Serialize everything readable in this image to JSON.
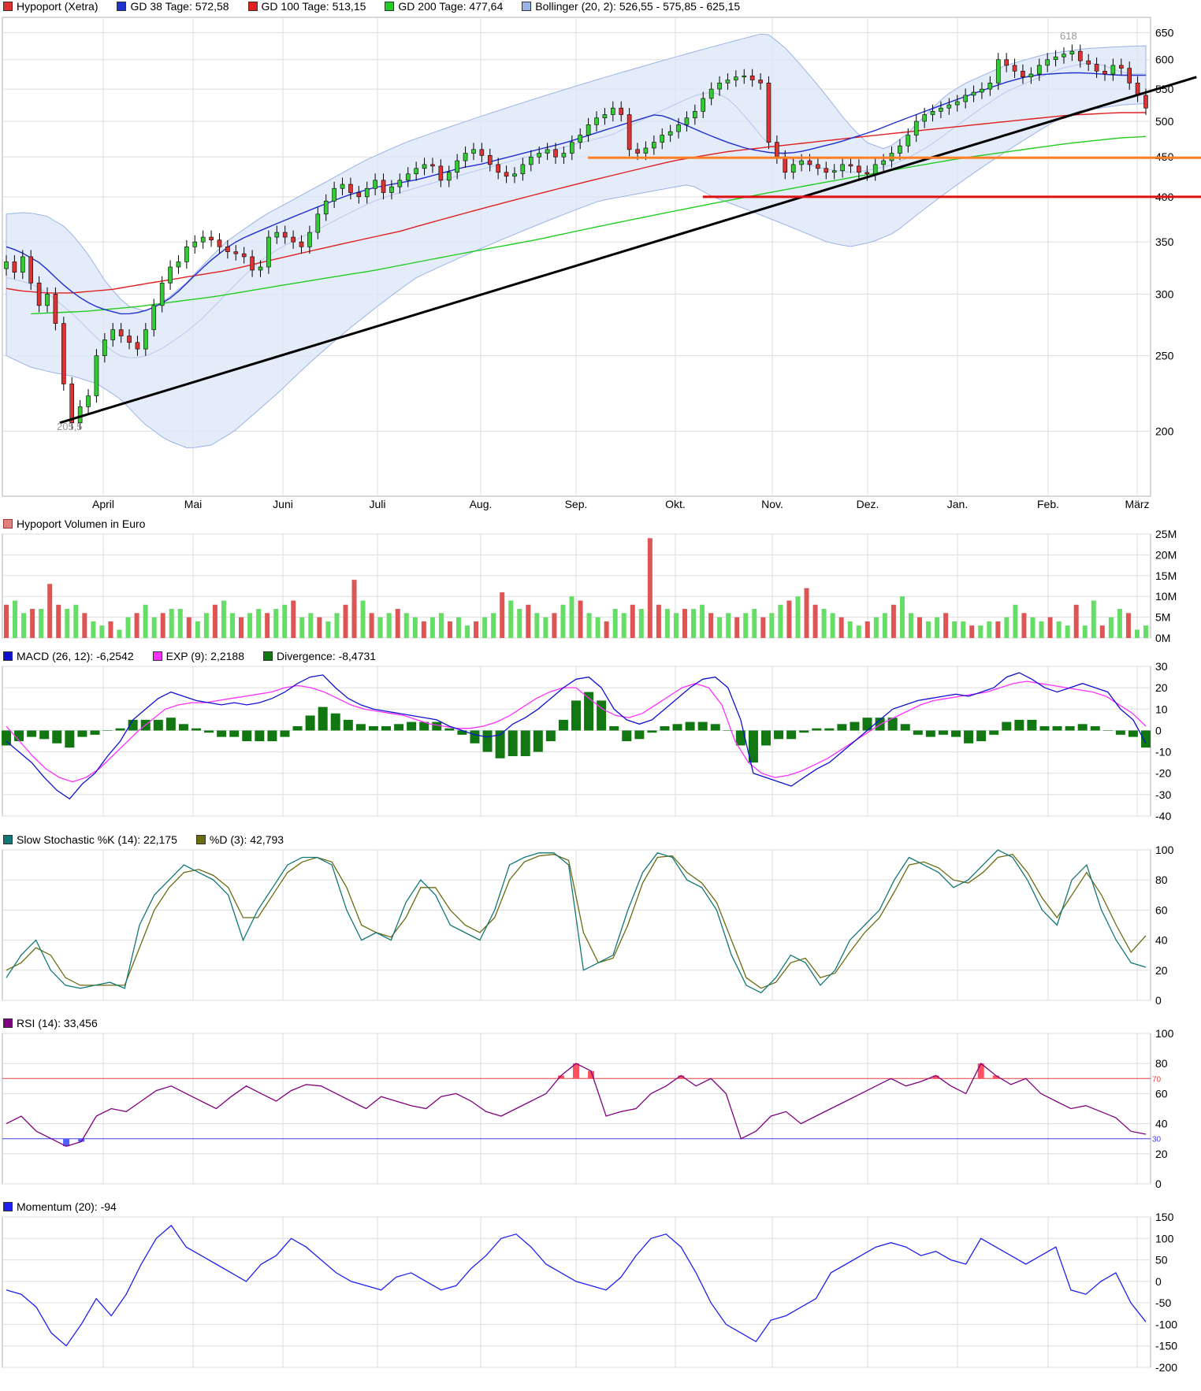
{
  "chart_data": [
    {
      "type": "candlestick",
      "legend": [
        {
          "label": "Hypoport (Xetra)",
          "color": "#e03030"
        },
        {
          "label": "GD 38 Tage: 572,58",
          "color": "#1f2fd0"
        },
        {
          "label": "GD 100 Tage: 513,15",
          "color": "#e02020"
        },
        {
          "label": "GD 200 Tage: 477,64",
          "color": "#22cc22"
        },
        {
          "label": "Bollinger (20, 2): 526,55 - 575,85 - 625,15",
          "color": "#9bb4e6"
        }
      ],
      "x_labels": [
        "April",
        "Mai",
        "Juni",
        "Juli",
        "Aug.",
        "Sep.",
        "Okt.",
        "Nov.",
        "Dez.",
        "Jan.",
        "Feb.",
        "März"
      ],
      "y_ticks": [
        650,
        600,
        550,
        500,
        450,
        400,
        350,
        300,
        250,
        200
      ],
      "y_scale": "log",
      "ylim": [
        165,
        680
      ],
      "annotations": [
        {
          "text": "618"
        },
        {
          "text": "205,5"
        }
      ],
      "close": [
        330,
        320,
        335,
        310,
        290,
        300,
        275,
        230,
        205,
        215,
        222,
        250,
        262,
        270,
        265,
        260,
        255,
        270,
        290,
        310,
        325,
        330,
        345,
        350,
        355,
        352,
        345,
        340,
        338,
        335,
        322,
        325,
        355,
        360,
        355,
        350,
        345,
        360,
        380,
        395,
        410,
        415,
        405,
        400,
        410,
        420,
        405,
        412,
        420,
        428,
        435,
        440,
        438,
        420,
        430,
        445,
        455,
        460,
        452,
        440,
        430,
        425,
        428,
        440,
        450,
        455,
        460,
        450,
        455,
        470,
        480,
        495,
        505,
        510,
        520,
        510,
        460,
        455,
        462,
        470,
        480,
        485,
        495,
        505,
        515,
        535,
        550,
        560,
        565,
        570,
        572,
        565,
        560,
        470,
        450,
        430,
        440,
        445,
        440,
        435,
        430,
        432,
        440,
        438,
        430,
        428,
        440,
        445,
        455,
        465,
        480,
        500,
        510,
        515,
        520,
        525,
        530,
        540,
        545,
        550,
        560,
        600,
        590,
        580,
        570,
        575,
        590,
        600,
        605,
        610,
        615,
        598,
        592,
        580,
        575,
        590,
        585,
        560,
        540,
        520
      ],
      "ma38": [
        345,
        342,
        338,
        333,
        328,
        320,
        312,
        305,
        299,
        294,
        290,
        287,
        285,
        283,
        283,
        284,
        286,
        289,
        293,
        298,
        305,
        313,
        321,
        329,
        336,
        343,
        349,
        354,
        358,
        362,
        366,
        370,
        374,
        378,
        382,
        386,
        390,
        394,
        398,
        402,
        405,
        408,
        411,
        413,
        415,
        417,
        419,
        421,
        424,
        427,
        430,
        433,
        436,
        438,
        440,
        443,
        446,
        449,
        452,
        455,
        458,
        461,
        464,
        467,
        470,
        474,
        478,
        482,
        486,
        490,
        494,
        498,
        502,
        506,
        510,
        508,
        503,
        497,
        492,
        486,
        481,
        476,
        471,
        467,
        463,
        460,
        458,
        456,
        455,
        455,
        456,
        458,
        461,
        464,
        467,
        470,
        474,
        478,
        482,
        486,
        491,
        496,
        501,
        506,
        511,
        516,
        521,
        526,
        531,
        536,
        541,
        546,
        551,
        556,
        561,
        565,
        569,
        572,
        574,
        575,
        576,
        577,
        577,
        577,
        576,
        575,
        574,
        573,
        573,
        573,
        573
      ],
      "ma100": [
        305,
        303,
        302,
        301,
        301,
        301,
        302,
        303,
        304,
        306,
        308,
        310,
        312,
        314,
        316,
        318,
        320,
        322,
        325,
        328,
        331,
        334,
        337,
        340,
        343,
        346,
        349,
        352,
        355,
        358,
        361,
        365,
        369,
        373,
        377,
        381,
        385,
        389,
        393,
        397,
        401,
        405,
        409,
        413,
        417,
        421,
        425,
        429,
        433,
        437,
        441,
        445,
        448,
        451,
        454,
        457,
        459,
        461,
        463,
        465,
        467,
        469,
        471,
        473,
        475,
        477,
        479,
        481,
        483,
        485,
        487,
        489,
        491,
        493,
        495,
        497,
        499,
        501,
        503,
        505,
        507,
        509,
        510,
        511,
        512,
        513,
        513,
        513
      ],
      "ma200": [
        283,
        284,
        285,
        287,
        289,
        292,
        295,
        298,
        302,
        306,
        310,
        314,
        318,
        322,
        327,
        332,
        337,
        342,
        347,
        352,
        358,
        364,
        370,
        376,
        382,
        388,
        394,
        400,
        406,
        412,
        418,
        424,
        430,
        436,
        442,
        448,
        453,
        458,
        463,
        468,
        472,
        476,
        478
      ],
      "bb_mid": [
        315,
        312,
        308,
        300,
        290,
        280,
        268,
        258,
        250,
        248,
        250,
        255,
        262,
        270,
        280,
        292,
        305,
        318,
        330,
        340,
        348,
        355,
        362,
        370,
        378,
        386,
        394,
        400,
        405,
        410,
        415,
        420,
        425,
        430,
        435,
        440,
        445,
        450,
        455,
        460,
        465,
        470,
        475,
        480,
        490,
        500,
        510,
        520,
        530,
        540,
        545,
        540,
        520,
        495,
        470,
        455,
        445,
        440,
        435,
        432,
        430,
        432,
        435,
        440,
        448,
        458,
        470,
        485,
        500,
        515,
        530,
        545,
        555,
        565,
        575,
        585,
        590,
        595,
        590,
        580,
        575,
        576
      ],
      "bb_up": [
        380,
        382,
        378,
        365,
        340,
        310,
        290,
        285,
        295,
        310,
        330,
        350,
        365,
        380,
        392,
        405,
        418,
        432,
        446,
        458,
        470,
        480,
        490,
        500,
        510,
        520,
        530,
        540,
        550,
        560,
        570,
        580,
        590,
        600,
        610,
        620,
        630,
        640,
        650,
        620,
        580,
        540,
        500,
        470,
        460,
        480,
        510,
        540,
        560,
        575,
        590,
        600,
        610,
        615,
        620,
        622,
        624,
        625
      ],
      "bb_low": [
        250,
        242,
        238,
        235,
        230,
        220,
        205,
        195,
        190,
        192,
        200,
        212,
        225,
        240,
        255,
        270,
        285,
        300,
        315,
        325,
        335,
        345,
        355,
        365,
        375,
        385,
        395,
        400,
        405,
        410,
        415,
        400,
        390,
        380,
        370,
        360,
        350,
        345,
        350,
        360,
        380,
        400,
        420,
        440,
        460,
        480,
        500,
        515,
        520,
        525,
        527
      ],
      "trendlines": [
        {
          "color": "#000000",
          "from": [
            205,
            0.05
          ],
          "to": [
            570,
            1.04
          ]
        },
        {
          "color": "#ff7f27",
          "level": 449,
          "from_frac": 0.51
        },
        {
          "color": "#e01010",
          "level": 400,
          "from_frac": 0.61
        }
      ]
    },
    {
      "type": "bar",
      "title": "Hypoport Volumen in Euro",
      "y_ticks": [
        "25M",
        "20M",
        "15M",
        "10M",
        "5M",
        "0M"
      ],
      "ylim": [
        0,
        25
      ],
      "values": [
        8,
        9,
        6,
        7,
        7,
        13,
        8,
        7,
        8,
        6,
        4,
        3,
        4,
        2,
        5,
        6,
        8,
        5,
        6,
        7,
        7,
        5,
        4,
        6,
        8,
        9,
        6,
        5,
        6,
        7,
        6,
        7,
        8,
        9,
        5,
        6,
        5,
        4,
        6,
        8,
        14,
        9,
        6,
        5,
        6,
        7,
        6,
        5,
        4,
        5,
        6,
        4,
        5,
        3,
        4,
        5,
        6,
        11,
        9,
        7,
        8,
        6,
        5,
        6,
        8,
        10,
        9,
        6,
        5,
        4,
        7,
        6,
        8,
        7,
        24,
        8,
        7,
        6,
        7,
        7,
        8,
        6,
        5,
        6,
        5,
        6,
        7,
        5,
        6,
        8,
        9,
        10,
        12,
        8,
        7,
        6,
        5,
        4,
        3,
        4,
        5,
        6,
        8,
        10,
        6,
        5,
        4,
        5,
        6,
        4,
        4,
        3,
        3,
        4,
        4,
        5,
        8,
        6,
        5,
        4,
        5,
        4,
        3,
        8,
        3,
        9,
        3,
        5,
        7,
        6,
        2,
        3
      ]
    },
    {
      "type": "line",
      "legend": [
        {
          "label": "MACD (26, 12): -6,2542",
          "color": "#1010d0"
        },
        {
          "label": "EXP (9): 2,2188",
          "color": "#ff30ff"
        },
        {
          "label": "Divergence: -8,4731",
          "color": "#117711"
        }
      ],
      "y_ticks": [
        30,
        20,
        10,
        0,
        -10,
        -20,
        -30,
        -40
      ],
      "ylim": [
        -40,
        30
      ],
      "macd": [
        -5,
        -10,
        -15,
        -22,
        -28,
        -32,
        -25,
        -20,
        -12,
        -5,
        5,
        10,
        15,
        18,
        16,
        14,
        13,
        12,
        13,
        12,
        13,
        15,
        18,
        22,
        25,
        26,
        20,
        15,
        12,
        10,
        9,
        8,
        7,
        6,
        5,
        2,
        0,
        -2,
        -3,
        -2,
        3,
        6,
        10,
        15,
        20,
        24,
        25,
        20,
        10,
        5,
        3,
        5,
        10,
        15,
        20,
        24,
        25,
        20,
        5,
        -20,
        -22,
        -24,
        -26,
        -22,
        -18,
        -15,
        -10,
        -5,
        0,
        5,
        10,
        12,
        14,
        15,
        16,
        17,
        16,
        18,
        20,
        25,
        27,
        24,
        20,
        18,
        20,
        22,
        20,
        18,
        10,
        5,
        -6
      ],
      "signal": [
        2,
        -5,
        -12,
        -18,
        -22,
        -24,
        -22,
        -18,
        -12,
        -6,
        0,
        5,
        10,
        12,
        13,
        13,
        14,
        15,
        16,
        17,
        18,
        20,
        21,
        20,
        18,
        15,
        12,
        10,
        9,
        8,
        7,
        5,
        3,
        2,
        1,
        1,
        2,
        4,
        7,
        11,
        15,
        18,
        20,
        20,
        15,
        10,
        7,
        6,
        8,
        12,
        16,
        20,
        22,
        20,
        12,
        -5,
        -15,
        -20,
        -22,
        -21,
        -19,
        -16,
        -13,
        -9,
        -5,
        -1,
        3,
        6,
        9,
        12,
        14,
        15,
        16,
        17,
        18,
        20,
        22,
        23,
        22,
        21,
        20,
        19,
        18,
        16,
        12,
        8,
        2
      ],
      "divergence": [
        -7,
        -5,
        -3,
        -4,
        -6,
        -8,
        -3,
        -2,
        0,
        1,
        5,
        5,
        5,
        6,
        3,
        1,
        -1,
        -3,
        -3,
        -5,
        -5,
        -5,
        -3,
        2,
        7,
        11,
        8,
        5,
        3,
        2,
        2,
        3,
        4,
        4,
        4,
        1,
        -2,
        -6,
        -10,
        -13,
        -12,
        -12,
        -10,
        -5,
        5,
        14,
        18,
        14,
        2,
        -5,
        -4,
        -1,
        2,
        3,
        4,
        4,
        3,
        0,
        -7,
        -15,
        -7,
        -4,
        -4,
        -1,
        1,
        1,
        3,
        4,
        6,
        6,
        6,
        3,
        -2,
        -3,
        -2,
        -3,
        -6,
        -5,
        -2,
        4,
        5,
        5,
        2,
        2,
        2,
        3,
        2,
        0,
        -2,
        -3,
        -8
      ]
    },
    {
      "type": "line",
      "legend": [
        {
          "label": "Slow Stochastic %K (14): 22,175",
          "color": "#117777"
        },
        {
          "label": "%D (3): 42,793",
          "color": "#6b6b10"
        }
      ],
      "y_ticks": [
        100,
        80,
        60,
        40,
        20,
        0
      ],
      "ylim": [
        0,
        100
      ],
      "k": [
        15,
        30,
        40,
        20,
        10,
        8,
        10,
        12,
        8,
        50,
        70,
        80,
        90,
        85,
        80,
        70,
        40,
        60,
        75,
        90,
        95,
        95,
        90,
        60,
        40,
        45,
        40,
        65,
        80,
        70,
        50,
        45,
        40,
        60,
        90,
        95,
        98,
        98,
        90,
        20,
        25,
        30,
        60,
        85,
        98,
        95,
        80,
        75,
        60,
        30,
        10,
        5,
        15,
        30,
        25,
        10,
        20,
        40,
        50,
        60,
        80,
        95,
        90,
        85,
        75,
        80,
        90,
        100,
        95,
        80,
        60,
        50,
        80,
        90,
        60,
        40,
        25,
        22
      ],
      "d": [
        20,
        25,
        35,
        30,
        15,
        10,
        10,
        10,
        10,
        35,
        60,
        75,
        85,
        87,
        83,
        75,
        55,
        55,
        70,
        85,
        92,
        95,
        92,
        75,
        50,
        45,
        42,
        55,
        75,
        75,
        60,
        50,
        45,
        55,
        80,
        92,
        96,
        97,
        93,
        45,
        25,
        28,
        50,
        78,
        95,
        96,
        85,
        78,
        65,
        40,
        15,
        8,
        12,
        25,
        28,
        15,
        18,
        32,
        45,
        55,
        72,
        90,
        92,
        88,
        80,
        78,
        85,
        95,
        97,
        85,
        68,
        55,
        70,
        85,
        70,
        50,
        32,
        43
      ]
    },
    {
      "type": "line",
      "legend": [
        {
          "label": "RSI (14): 33,456",
          "color": "#800080"
        }
      ],
      "y_ticks": [
        100,
        80,
        60,
        40,
        20,
        0
      ],
      "ylim": [
        0,
        100
      ],
      "ref_levels": [
        {
          "value": 70,
          "label": "70"
        },
        {
          "value": 30,
          "label": "30"
        }
      ],
      "values": [
        40,
        45,
        35,
        30,
        25,
        28,
        45,
        50,
        48,
        55,
        62,
        65,
        60,
        55,
        50,
        58,
        65,
        60,
        55,
        62,
        66,
        65,
        60,
        55,
        50,
        58,
        55,
        52,
        50,
        58,
        60,
        55,
        48,
        45,
        50,
        55,
        60,
        72,
        80,
        75,
        45,
        48,
        50,
        60,
        65,
        72,
        65,
        70,
        60,
        30,
        35,
        45,
        48,
        40,
        45,
        50,
        55,
        60,
        65,
        70,
        65,
        68,
        72,
        65,
        60,
        80,
        72,
        66,
        70,
        60,
        55,
        50,
        52,
        48,
        44,
        35,
        33
      ]
    },
    {
      "type": "line",
      "legend": [
        {
          "label": "Momentum (20): -94",
          "color": "#2020ee"
        }
      ],
      "y_ticks": [
        150,
        100,
        50,
        0,
        -50,
        -100,
        -150,
        -200
      ],
      "ylim": [
        -200,
        150
      ],
      "values": [
        -20,
        -30,
        -60,
        -120,
        -150,
        -100,
        -40,
        -80,
        -30,
        40,
        100,
        130,
        80,
        60,
        40,
        20,
        0,
        40,
        60,
        100,
        80,
        50,
        20,
        0,
        -10,
        -20,
        10,
        20,
        0,
        -20,
        -10,
        30,
        60,
        100,
        110,
        80,
        40,
        20,
        0,
        -10,
        -20,
        10,
        60,
        100,
        110,
        80,
        20,
        -50,
        -100,
        -120,
        -140,
        -90,
        -80,
        -60,
        -40,
        20,
        40,
        60,
        80,
        90,
        80,
        60,
        70,
        50,
        40,
        100,
        80,
        60,
        40,
        60,
        80,
        -20,
        -30,
        0,
        20,
        -50,
        -94
      ]
    }
  ]
}
